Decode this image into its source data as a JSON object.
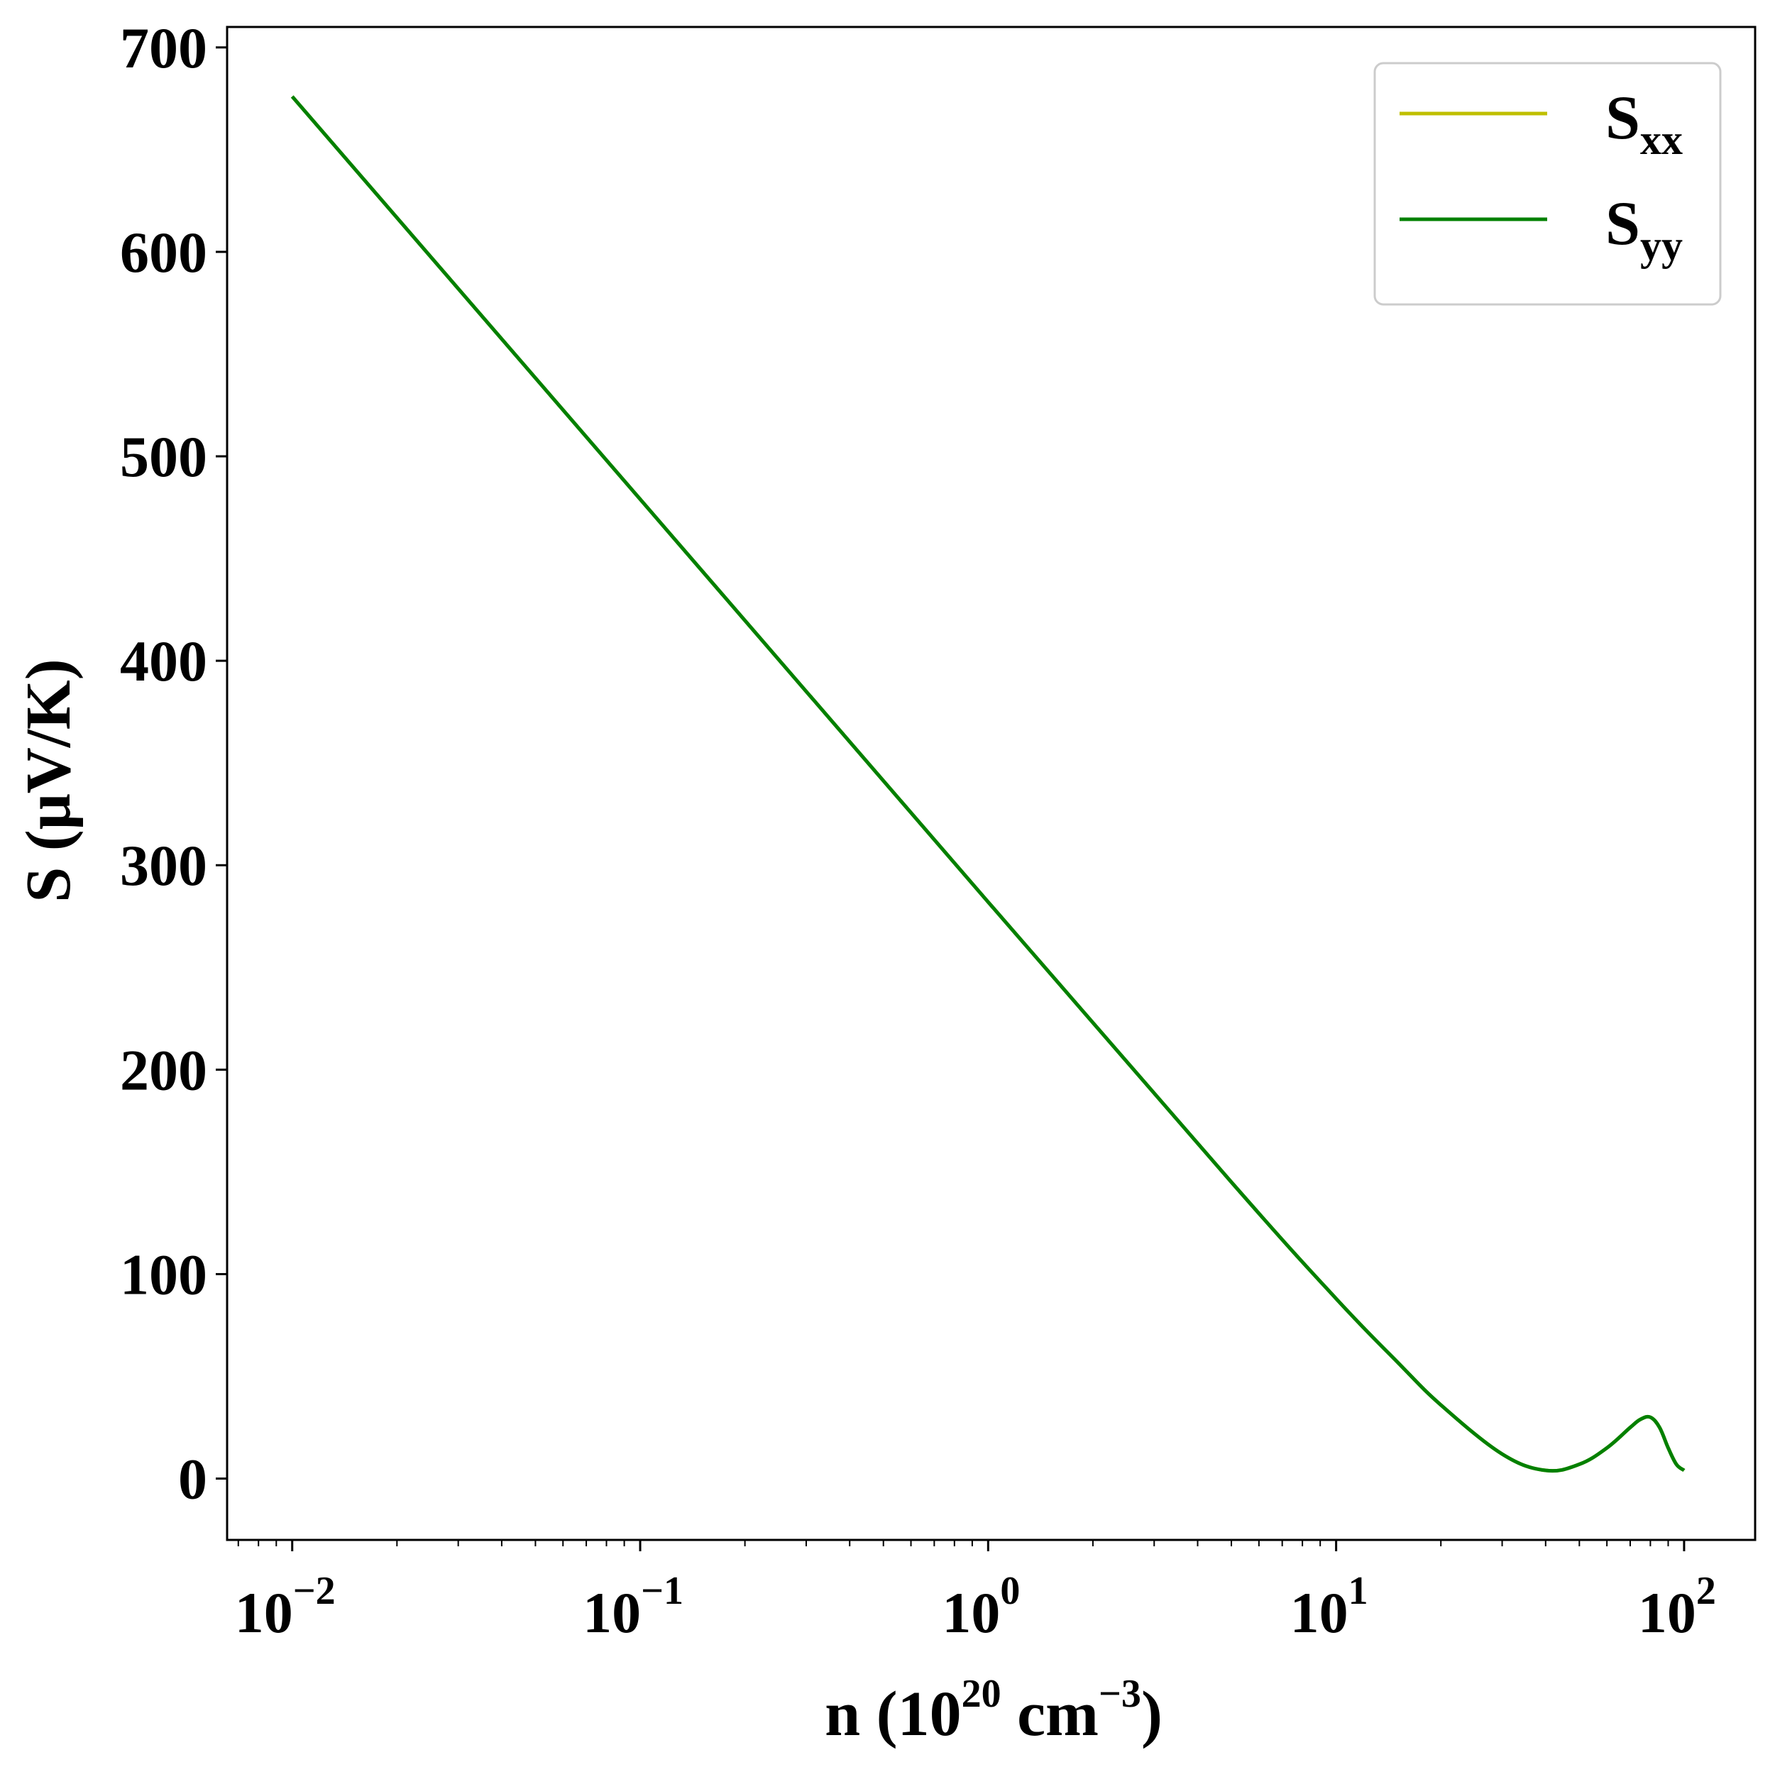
{
  "chart_data": {
    "type": "line",
    "x_scale": "log",
    "xlabel": {
      "base": "n (10",
      "exp1": "20",
      "mid": " cm",
      "exp2": "−3",
      "end": ")"
    },
    "ylabel": "S (μV/K)",
    "xlim": [
      0.0065,
      160
    ],
    "ylim": [
      -30,
      710
    ],
    "x_ticks": [
      {
        "value": 0.01,
        "base": "10",
        "exp": "−2"
      },
      {
        "value": 0.1,
        "base": "10",
        "exp": "−1"
      },
      {
        "value": 1,
        "base": "10",
        "exp": "0"
      },
      {
        "value": 10,
        "base": "10",
        "exp": "1"
      },
      {
        "value": 100,
        "base": "10",
        "exp": "2"
      }
    ],
    "y_ticks": [
      "0",
      "100",
      "200",
      "300",
      "400",
      "500",
      "600",
      "700"
    ],
    "legend_position": "top-right",
    "series": [
      {
        "name": {
          "base": "S",
          "sub": "xx"
        },
        "color": "#bfbf00",
        "x": [
          0.01,
          0.1,
          1,
          5,
          10,
          15,
          20,
          30,
          40,
          50,
          60,
          70,
          75,
          80,
          85,
          90,
          95,
          100
        ],
        "y": [
          676,
          479,
          282,
          145,
          88,
          57,
          36,
          12,
          4,
          7,
          15,
          25,
          29,
          30,
          25,
          15,
          7,
          4
        ]
      },
      {
        "name": {
          "base": "S",
          "sub": "yy"
        },
        "color": "#008000",
        "x": [
          0.01,
          0.1,
          1,
          5,
          10,
          15,
          20,
          30,
          40,
          50,
          60,
          70,
          75,
          80,
          85,
          90,
          95,
          100
        ],
        "y": [
          676,
          479,
          282,
          145,
          88,
          57,
          36,
          12,
          4,
          7,
          15,
          25,
          29,
          30,
          25,
          15,
          7,
          4
        ]
      }
    ]
  }
}
